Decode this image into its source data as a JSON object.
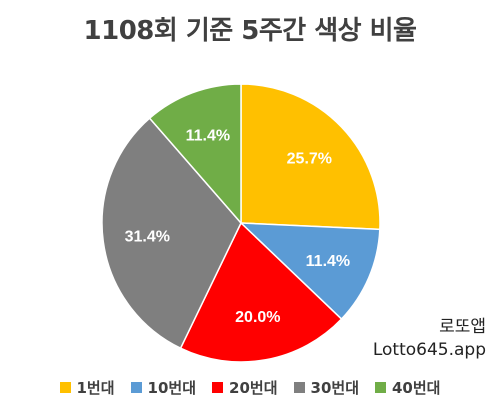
{
  "chart_data": {
    "type": "pie",
    "title": "1108회 기준 5주간 색상 비율",
    "categories": [
      "1번대",
      "10번대",
      "20번대",
      "30번대",
      "40번대"
    ],
    "values": [
      25.7,
      11.4,
      20.0,
      31.4,
      11.4
    ],
    "data_labels": [
      "25.7%",
      "11.4%",
      "20.0%",
      "31.4%",
      "11.4%"
    ],
    "colors": [
      "#FFC000",
      "#5B9BD5",
      "#FF0000",
      "#7F7F7F",
      "#70AD47"
    ],
    "start_angle": "12 o'clock",
    "direction": "clockwise",
    "legend": "bottom"
  },
  "watermark": {
    "line1": "로또앱",
    "line2": "Lotto645.app"
  }
}
